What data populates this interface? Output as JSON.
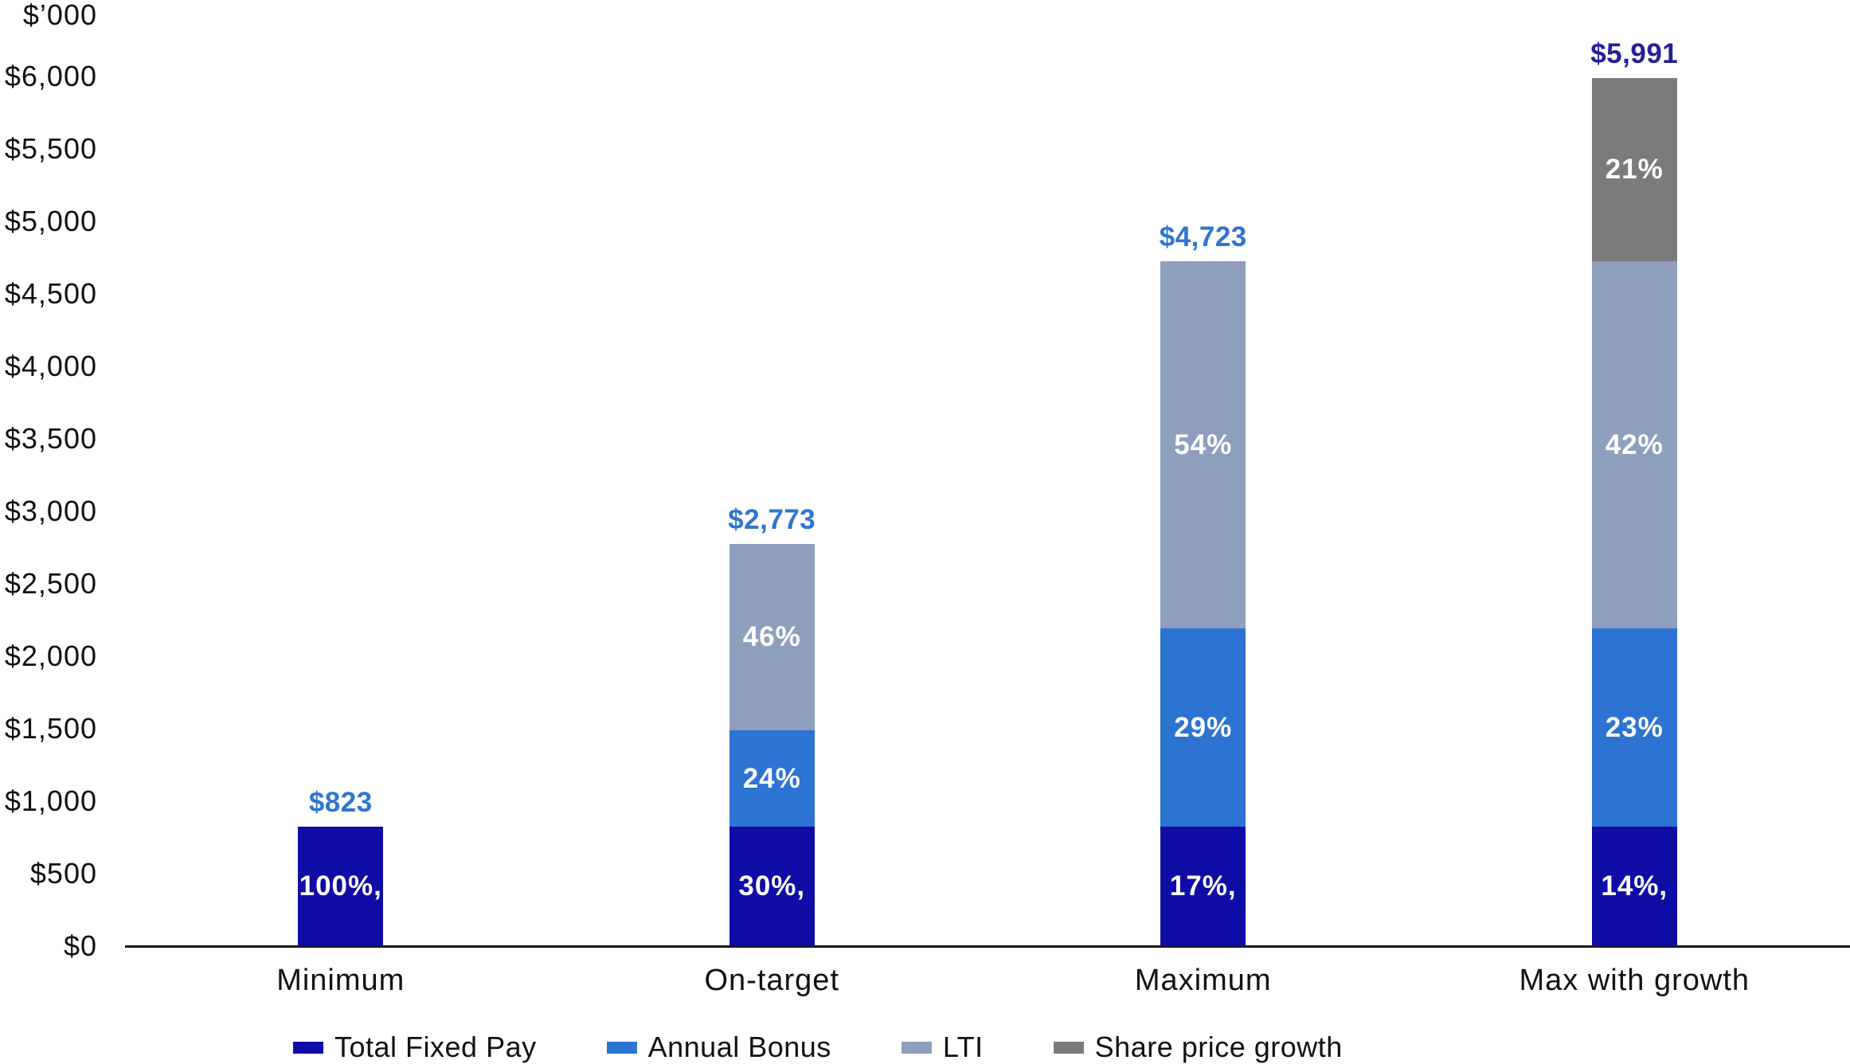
{
  "chart_data": {
    "type": "bar",
    "stacked": true,
    "title": "",
    "unit_label": "$’000",
    "grid": false,
    "legend_position": "bottom",
    "categories": [
      "Minimum",
      "On-target",
      "Maximum",
      "Max with growth"
    ],
    "series": [
      {
        "name": "Total Fixed Pay",
        "color": "#100CA6",
        "values": [
          823,
          823,
          823,
          823
        ],
        "segment_labels": [
          "100%,",
          "30%,",
          "17%,",
          "14%,"
        ]
      },
      {
        "name": "Annual Bonus",
        "color": "#2C73D2",
        "values": [
          0,
          665,
          1370,
          1370
        ],
        "segment_labels": [
          "",
          "24%",
          "29%",
          "23%"
        ]
      },
      {
        "name": "LTI",
        "color": "#8E9FBE",
        "values": [
          0,
          1285,
          2530,
          2530
        ],
        "segment_labels": [
          "",
          "46%",
          "54%",
          "42%"
        ]
      },
      {
        "name": "Share price growth",
        "color": "#7B7B7B",
        "values": [
          0,
          0,
          0,
          1268
        ],
        "segment_labels": [
          "",
          "",
          "",
          "21%"
        ]
      }
    ],
    "totals": [
      {
        "text": "$823",
        "color": "#2E75D2"
      },
      {
        "text": "$2,773",
        "color": "#2E75D2"
      },
      {
        "text": "$4,723",
        "color": "#2E75D2"
      },
      {
        "text": "$5,991",
        "color": "#241E9E"
      }
    ],
    "y_axis": {
      "min": 0,
      "max": 6000,
      "step": 500,
      "ticks": [
        "$0",
        "$500",
        "$1,000",
        "$1,500",
        "$2,000",
        "$2,500",
        "$3,000",
        "$3,500",
        "$4,000",
        "$4,500",
        "$5,000",
        "$5,500",
        "$6,000"
      ]
    },
    "legend": [
      {
        "label": "Total Fixed Pay",
        "color": "#100CA6"
      },
      {
        "label": "Annual Bonus",
        "color": "#2C73D2"
      },
      {
        "label": "LTI",
        "color": "#8E9FBE"
      },
      {
        "label": "Share price growth",
        "color": "#7B7B7B"
      }
    ]
  }
}
